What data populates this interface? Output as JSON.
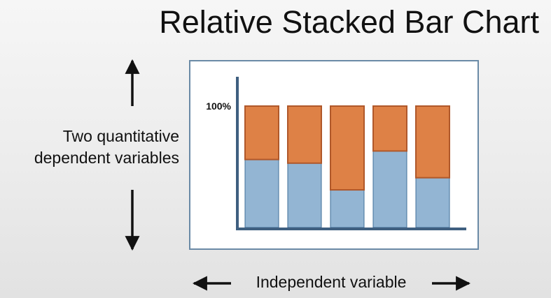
{
  "title": "Relative Stacked Bar Chart",
  "labels": {
    "dependent_line1": "Two quantitative",
    "dependent_line2": "dependent variables",
    "independent": "Independent variable"
  },
  "chart_data": {
    "type": "bar",
    "stacked": "relative",
    "y_tick_label": "100%",
    "ylim": [
      0,
      100
    ],
    "grid": false,
    "colors": {
      "bottom": "#93b5d3",
      "top": "#de8146",
      "bottom_edge": "#3f6f9a",
      "top_edge": "#b0582a",
      "axis": "#3f5f80"
    },
    "bars": [
      {
        "bottom": 56,
        "top": 44
      },
      {
        "bottom": 53,
        "top": 47
      },
      {
        "bottom": 31,
        "top": 69
      },
      {
        "bottom": 63,
        "top": 37
      },
      {
        "bottom": 41,
        "top": 59
      }
    ]
  }
}
